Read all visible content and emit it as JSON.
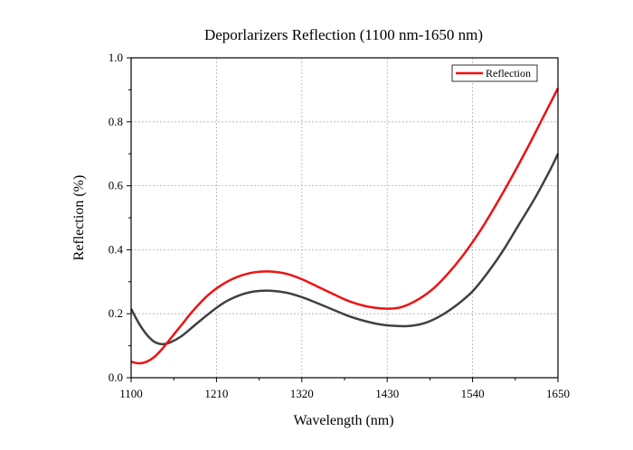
{
  "chart_data": {
    "type": "line",
    "title": "Deporlarizers Reflection (1100 nm-1650 nm)",
    "xlabel": "Wavelength (nm)",
    "ylabel": "Reflection (%)",
    "xlim": [
      1100,
      1650
    ],
    "ylim": [
      0.0,
      1.0
    ],
    "xticks": [
      1100,
      1210,
      1320,
      1430,
      1540,
      1650
    ],
    "yticks": [
      0.0,
      0.2,
      0.4,
      0.6,
      0.8,
      1.0
    ],
    "xtick_labels": [
      "1100",
      "1210",
      "1320",
      "1430",
      "1540",
      "1650"
    ],
    "ytick_labels": [
      "0.0",
      "0.2",
      "0.4",
      "0.6",
      "0.8",
      "1.0"
    ],
    "grid": true,
    "legend": "top-right",
    "series": [
      {
        "name": "Reflection",
        "color": "#ee1111",
        "x": [
          1100,
          1110,
          1120,
          1130,
          1140,
          1150,
          1165,
          1180,
          1200,
          1220,
          1240,
          1260,
          1280,
          1300,
          1320,
          1340,
          1360,
          1380,
          1400,
          1420,
          1435,
          1450,
          1470,
          1490,
          1510,
          1530,
          1550,
          1570,
          1590,
          1610,
          1630,
          1650
        ],
        "y": [
          0.05,
          0.045,
          0.05,
          0.065,
          0.09,
          0.12,
          0.165,
          0.21,
          0.26,
          0.295,
          0.318,
          0.33,
          0.332,
          0.325,
          0.308,
          0.285,
          0.262,
          0.24,
          0.225,
          0.217,
          0.216,
          0.222,
          0.245,
          0.28,
          0.33,
          0.39,
          0.46,
          0.54,
          0.625,
          0.715,
          0.81,
          0.905
        ]
      },
      {
        "name": "",
        "color": "#404040",
        "x": [
          1100,
          1110,
          1120,
          1130,
          1140,
          1150,
          1165,
          1180,
          1200,
          1220,
          1240,
          1260,
          1280,
          1300,
          1320,
          1340,
          1360,
          1380,
          1400,
          1420,
          1440,
          1460,
          1480,
          1500,
          1520,
          1540,
          1560,
          1580,
          1600,
          1620,
          1640,
          1650
        ],
        "y": [
          0.215,
          0.17,
          0.135,
          0.112,
          0.105,
          0.11,
          0.13,
          0.16,
          0.2,
          0.235,
          0.258,
          0.27,
          0.272,
          0.266,
          0.252,
          0.233,
          0.213,
          0.193,
          0.178,
          0.167,
          0.162,
          0.162,
          0.172,
          0.195,
          0.228,
          0.27,
          0.33,
          0.4,
          0.48,
          0.56,
          0.65,
          0.7
        ]
      }
    ]
  }
}
